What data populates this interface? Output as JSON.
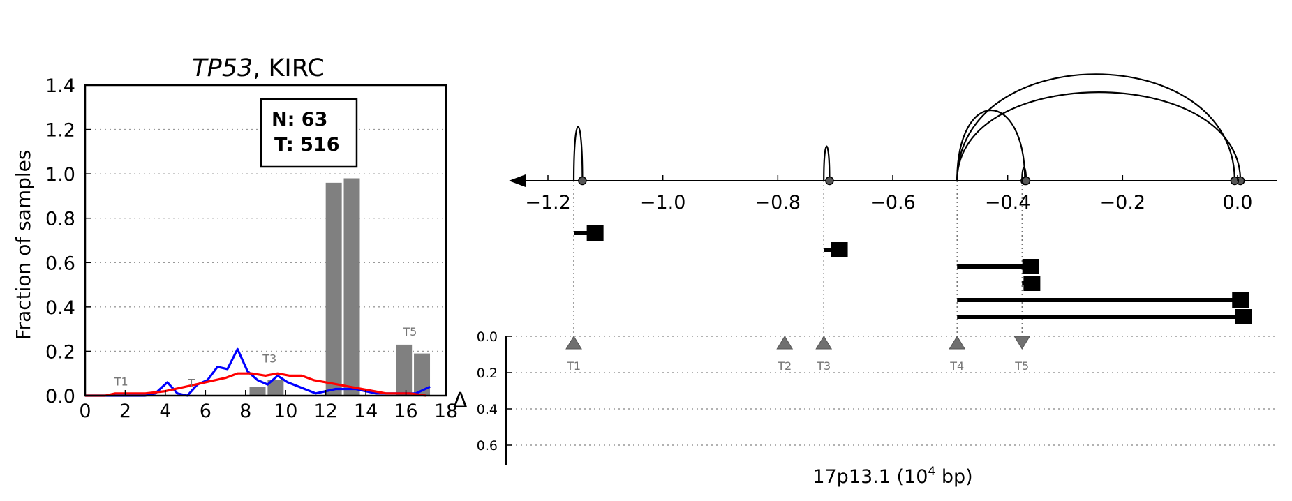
{
  "chart_data": [
    {
      "type": "bar",
      "title_gene": "TP53",
      "title_rest": ", KIRC",
      "ylabel": "Fraction of samples",
      "xlim": [
        0,
        18
      ],
      "ylim": [
        0,
        1.4
      ],
      "xticks": [
        0,
        2,
        4,
        6,
        8,
        10,
        12,
        14,
        16,
        18
      ],
      "yticks": [
        0.0,
        0.2,
        0.4,
        0.6,
        0.8,
        1.0,
        1.2,
        1.4
      ],
      "grid": "horizontal dotted",
      "legend_box": {
        "line1": "N: 63",
        "line2": "T: 516"
      },
      "bars": [
        {
          "x": 8.6,
          "value": 0.04
        },
        {
          "x": 9.5,
          "value": 0.07
        },
        {
          "x": 12.4,
          "value": 0.96
        },
        {
          "x": 13.3,
          "value": 0.98
        },
        {
          "x": 15.9,
          "value": 0.23
        },
        {
          "x": 16.8,
          "value": 0.19
        }
      ],
      "bar_color": "#808080",
      "series": [
        {
          "color": "#0000ff",
          "points": [
            [
              0,
              0
            ],
            [
              1,
              0
            ],
            [
              2,
              0
            ],
            [
              3,
              0
            ],
            [
              3.5,
              0.01
            ],
            [
              4.1,
              0.06
            ],
            [
              4.6,
              0.01
            ],
            [
              5.1,
              0
            ],
            [
              5.6,
              0.05
            ],
            [
              6.1,
              0.07
            ],
            [
              6.6,
              0.13
            ],
            [
              7.1,
              0.12
            ],
            [
              7.6,
              0.21
            ],
            [
              8.1,
              0.11
            ],
            [
              8.6,
              0.07
            ],
            [
              9.1,
              0.05
            ],
            [
              9.6,
              0.09
            ],
            [
              10.1,
              0.06
            ],
            [
              11.5,
              0.01
            ],
            [
              12.5,
              0.03
            ],
            [
              13.5,
              0.03
            ],
            [
              14.5,
              0.01
            ],
            [
              15.5,
              0.01
            ],
            [
              16.5,
              0.01
            ],
            [
              17.2,
              0.04
            ]
          ]
        },
        {
          "color": "#ff0000",
          "points": [
            [
              0,
              0
            ],
            [
              1,
              0
            ],
            [
              1.5,
              0.01
            ],
            [
              2,
              0.01
            ],
            [
              3,
              0.01
            ],
            [
              4,
              0.02
            ],
            [
              5,
              0.04
            ],
            [
              6,
              0.06
            ],
            [
              7,
              0.08
            ],
            [
              7.6,
              0.1
            ],
            [
              8.3,
              0.1
            ],
            [
              9,
              0.09
            ],
            [
              9.6,
              0.1
            ],
            [
              10.2,
              0.09
            ],
            [
              10.8,
              0.09
            ],
            [
              11.4,
              0.07
            ],
            [
              12,
              0.06
            ],
            [
              12.6,
              0.05
            ],
            [
              13.2,
              0.04
            ],
            [
              13.8,
              0.03
            ],
            [
              14.4,
              0.02
            ],
            [
              15,
              0.01
            ],
            [
              15.6,
              0.01
            ],
            [
              16.2,
              0.01
            ],
            [
              17,
              0
            ]
          ]
        }
      ],
      "markers": [
        {
          "label": "T1",
          "x": 1.8,
          "y": 0.045
        },
        {
          "label": "T",
          "x": 5.3,
          "y": 0.04
        },
        {
          "label": "T3",
          "x": 9.2,
          "y": 0.15
        },
        {
          "label": "T5",
          "x": 16.2,
          "y": 0.27
        }
      ]
    },
    {
      "type": "arc-diagram",
      "xlabel_main": "17p13.1 (10",
      "xlabel_sup": "4",
      "xlabel_end": " bp)",
      "xlim": [
        -1.265,
        0.085
      ],
      "xticks": [
        "−1.2",
        "−1.0",
        "−0.8",
        "−0.6",
        "−0.4",
        "−0.2",
        "0.0"
      ],
      "xtick_values": [
        -1.2,
        -1.0,
        -0.8,
        -0.6,
        -0.4,
        -0.2,
        0.0
      ],
      "delta_label": "Δ",
      "delta_ticks": [
        "0.0",
        "0.2",
        "0.4",
        "0.6"
      ],
      "delta_values": [
        0.0,
        0.2,
        0.4,
        0.6
      ],
      "arcs": [
        {
          "start": -1.155,
          "end": -1.14,
          "height": 0.33
        },
        {
          "start": -0.72,
          "end": -0.71,
          "height": 0.21
        },
        {
          "start": -0.488,
          "end": -0.37,
          "height": 0.43
        },
        {
          "start": -0.375,
          "end": -0.368,
          "height": 0.08
        },
        {
          "start": -0.488,
          "end": 0.005,
          "height": 0.54
        },
        {
          "start": -0.488,
          "end": -0.005,
          "height": 0.65
        }
      ],
      "segments": [
        {
          "from": -1.155,
          "to": -1.13
        },
        {
          "from": -0.72,
          "to": -0.705
        },
        {
          "from": -0.488,
          "to": -0.372
        },
        {
          "from": -0.375,
          "to": -0.37
        },
        {
          "from": -0.488,
          "to": -0.007
        },
        {
          "from": -0.488,
          "to": -0.002
        }
      ],
      "tss_markers": [
        {
          "label": "T1",
          "x": -1.155,
          "direction": "up",
          "guide": true
        },
        {
          "label": "T2",
          "x": -0.788,
          "direction": "up",
          "guide": false
        },
        {
          "label": "T3",
          "x": -0.72,
          "direction": "up",
          "guide": true
        },
        {
          "label": "T4",
          "x": -0.488,
          "direction": "up",
          "guide": true
        },
        {
          "label": "T5",
          "x": -0.375,
          "direction": "down",
          "guide": true
        }
      ],
      "marker_color": "#707070"
    }
  ]
}
